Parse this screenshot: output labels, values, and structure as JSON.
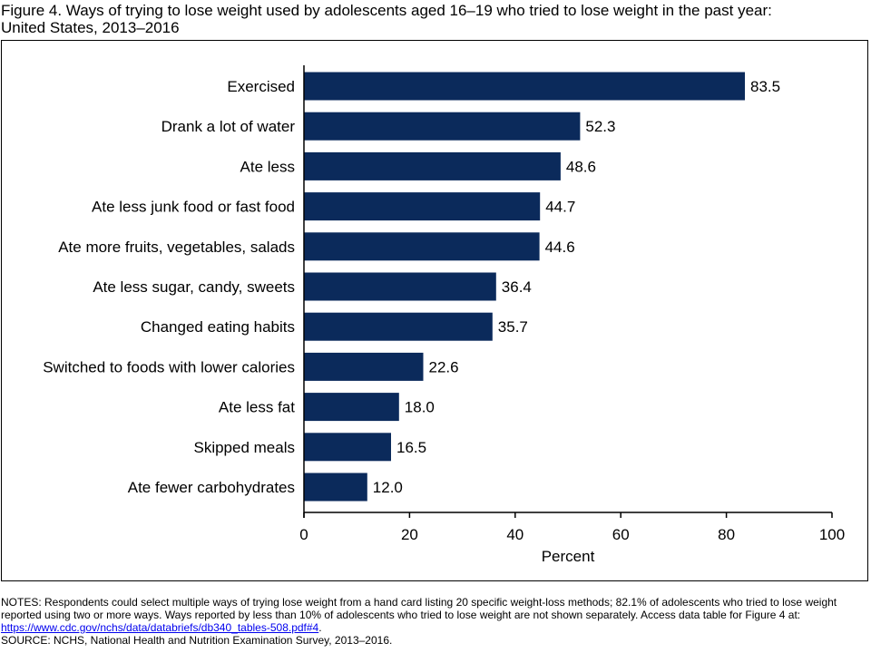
{
  "figure": {
    "title_line1": "Figure 4. Ways of trying to lose weight used by adolescents aged 16–19 who tried to lose weight in the past year:",
    "title_line2": "United States, 2013–2016"
  },
  "notes": {
    "notes_text": "NOTES: Respondents could select multiple ways of trying lose weight from a hand card listing 20 specific weight-loss methods; 82.1% of adolescents who tried to lose weight reported using two or more ways. Ways reported by less than 10% of adolescents who tried to lose weight are not shown separately. Access data table for Figure 4 at: ",
    "link_text": "https://www.cdc.gov/nchs/data/databriefs/db340_tables-508.pdf#4",
    "notes_end": ".",
    "source": "SOURCE: NCHS, National Health and Nutrition Examination Survey, 2013–2016."
  },
  "colors": {
    "bar": "#0b2a5b",
    "axis": "#000000"
  },
  "chart_data": {
    "type": "bar",
    "orientation": "horizontal",
    "title": "",
    "xlabel": "Percent",
    "ylabel": "",
    "xlim": [
      0,
      100
    ],
    "xticks": [
      0,
      20,
      40,
      60,
      80,
      100
    ],
    "grid": false,
    "categories": [
      "Exercised",
      "Drank a lot of water",
      "Ate less",
      "Ate less junk food or fast food",
      "Ate more fruits, vegetables, salads",
      "Ate less sugar, candy, sweets",
      "Changed eating habits",
      "Switched to foods with lower calories",
      "Ate less fat",
      "Skipped meals",
      "Ate fewer carbohydrates"
    ],
    "values": [
      83.5,
      52.3,
      48.6,
      44.7,
      44.6,
      36.4,
      35.7,
      22.6,
      18.0,
      16.5,
      12.0
    ],
    "value_labels": [
      "83.5",
      "52.3",
      "48.6",
      "44.7",
      "44.6",
      "36.4",
      "35.7",
      "22.6",
      "18.0",
      "16.5",
      "12.0"
    ]
  }
}
